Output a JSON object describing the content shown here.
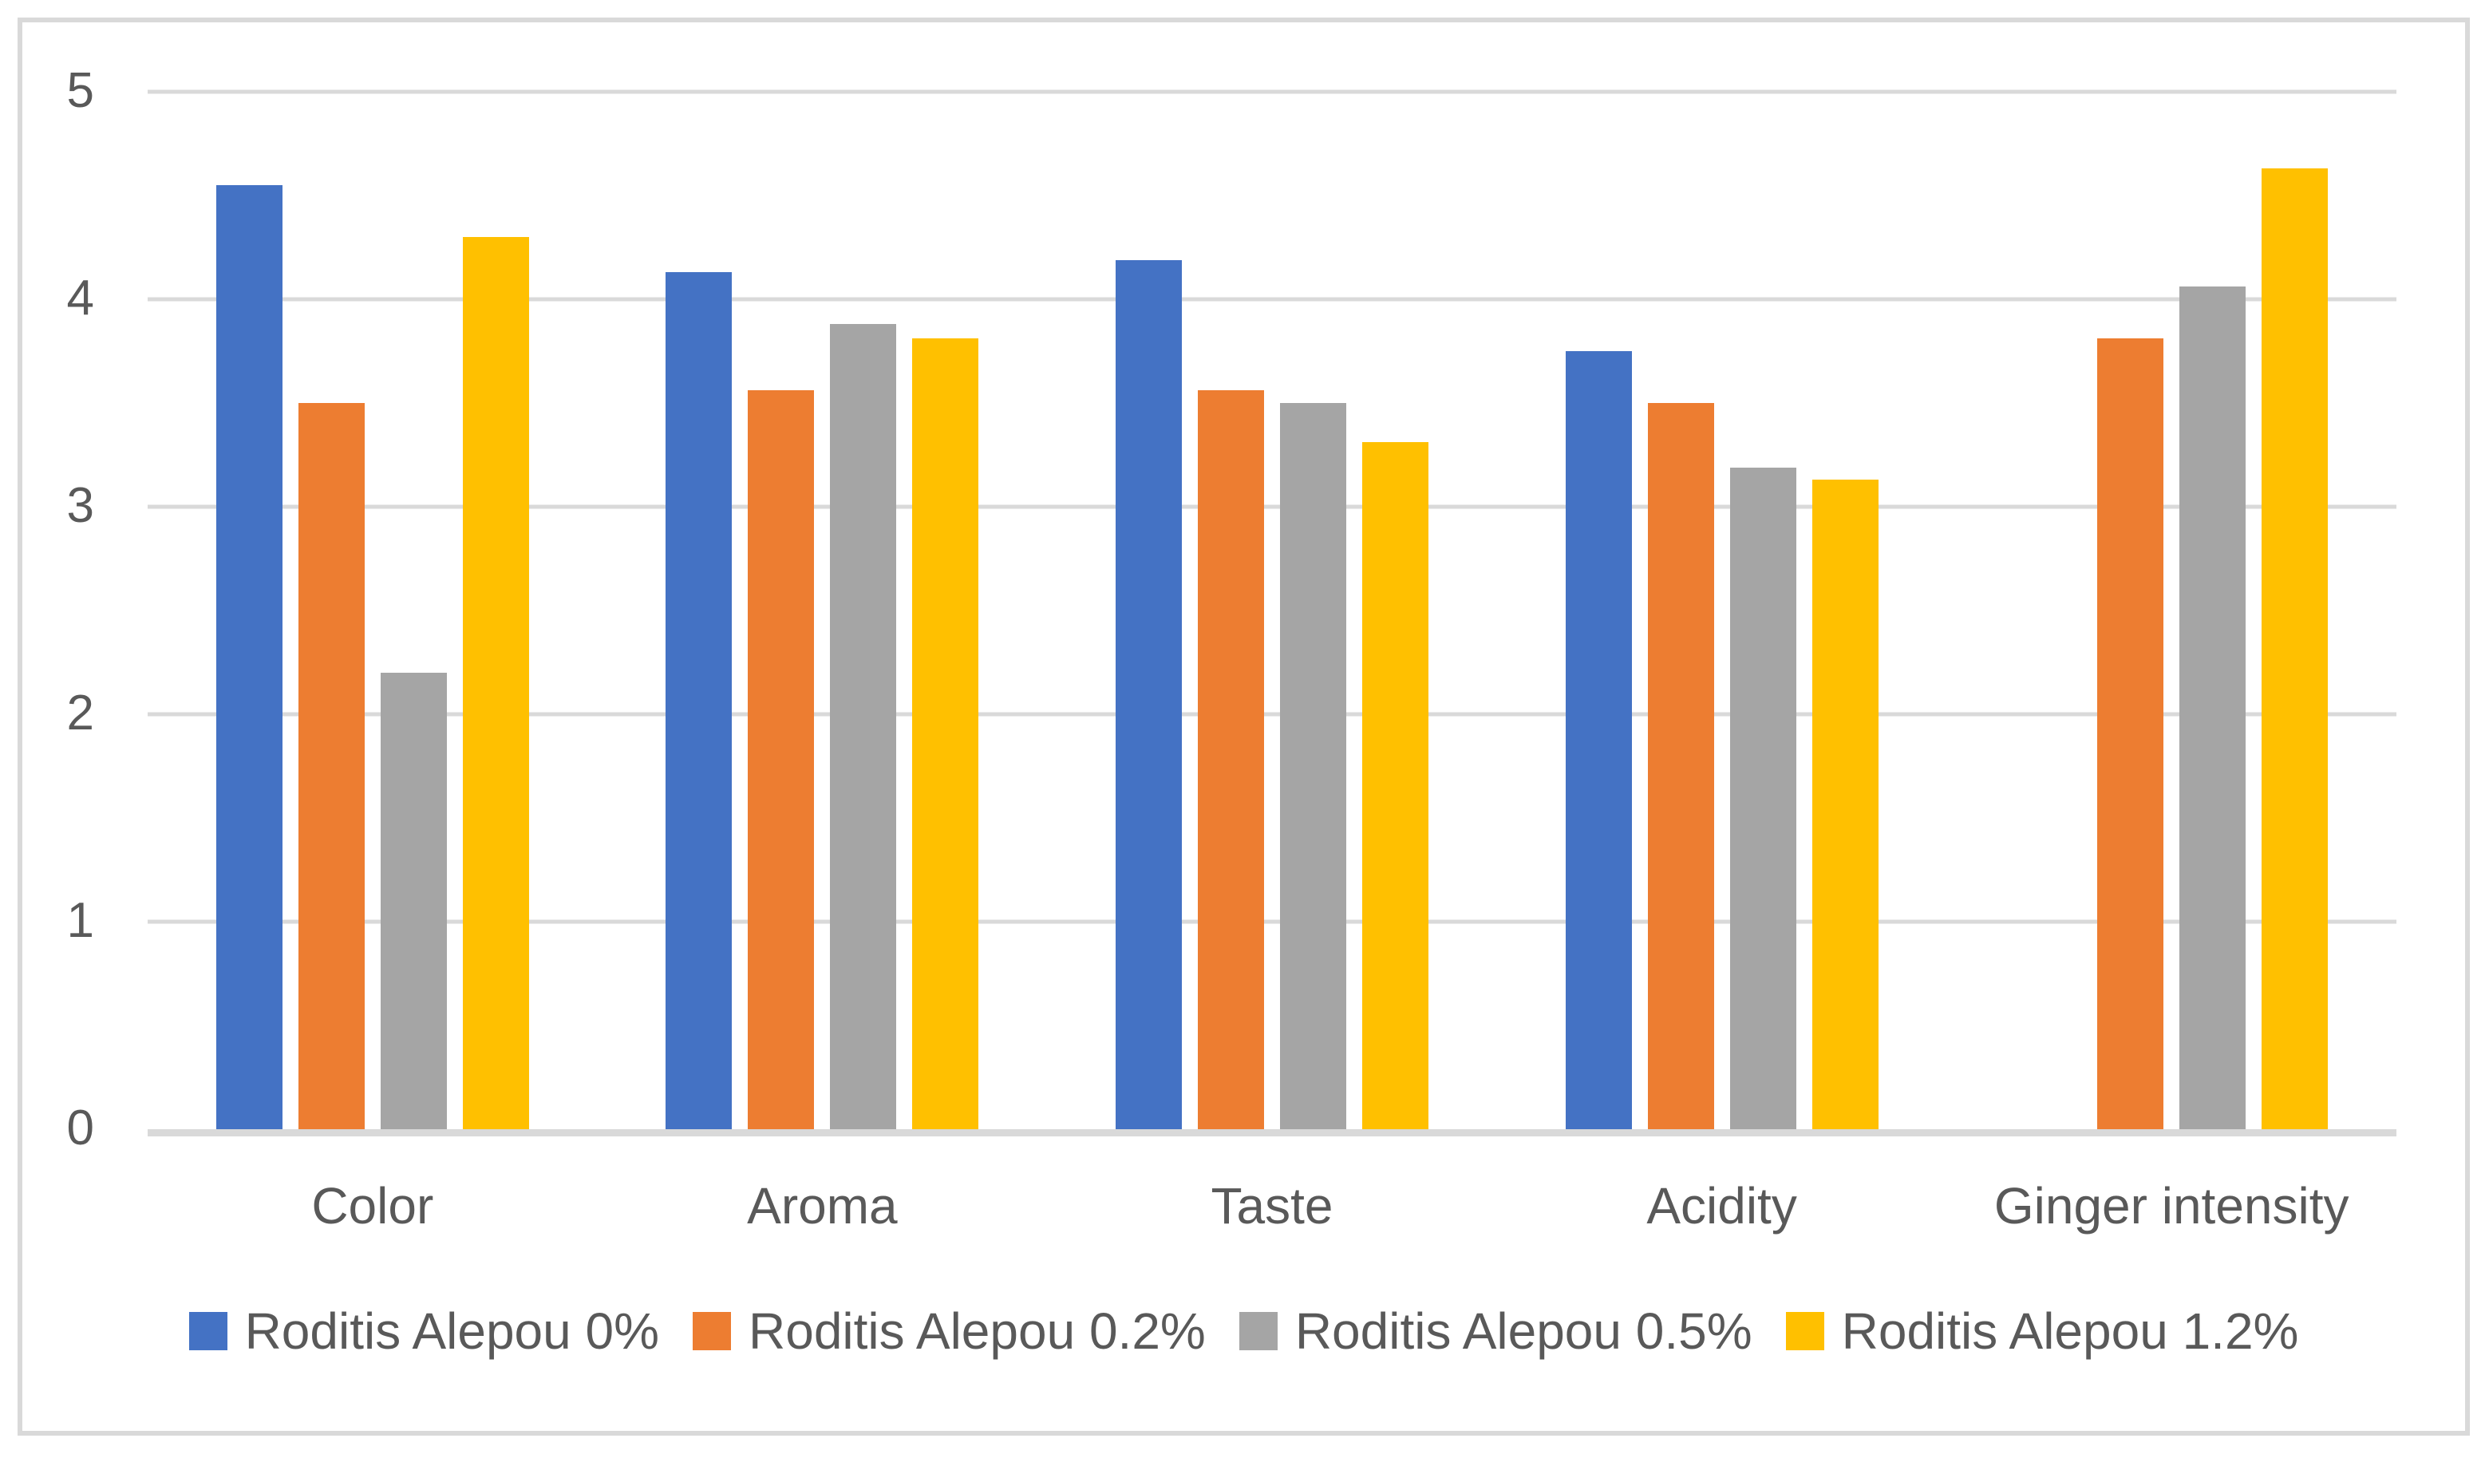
{
  "chart_data": {
    "type": "bar",
    "title": "",
    "categories": [
      "Color",
      "Aroma",
      "Taste",
      "Acidity",
      "Ginger intensity"
    ],
    "series": [
      {
        "name": "Roditis Alepou 0%",
        "color": "#4472C4",
        "values": [
          4.55,
          4.13,
          4.19,
          3.75,
          0
        ]
      },
      {
        "name": "Roditis Alepou 0.2%",
        "color": "#ED7D31",
        "values": [
          3.5,
          3.56,
          3.56,
          3.5,
          3.81
        ]
      },
      {
        "name": "Roditis Alepou 0.5%",
        "color": "#A5A5A5",
        "values": [
          2.2,
          3.88,
          3.5,
          3.19,
          4.06
        ]
      },
      {
        "name": "Roditis Alepou 1.2%",
        "color": "#FFC000",
        "values": [
          4.3,
          3.81,
          3.31,
          3.13,
          4.63
        ]
      }
    ],
    "y_axis": {
      "min": 0,
      "max": 5,
      "ticks": [
        0,
        1,
        2,
        3,
        4,
        5
      ]
    },
    "grid": true,
    "legend_position": "bottom"
  },
  "styles": {
    "background": "#FFFFFF",
    "border_color": "#D9D9D9",
    "gridline_color": "#D9D9D9",
    "axisline_color": "#D9D9D9",
    "text_color": "#595959"
  }
}
